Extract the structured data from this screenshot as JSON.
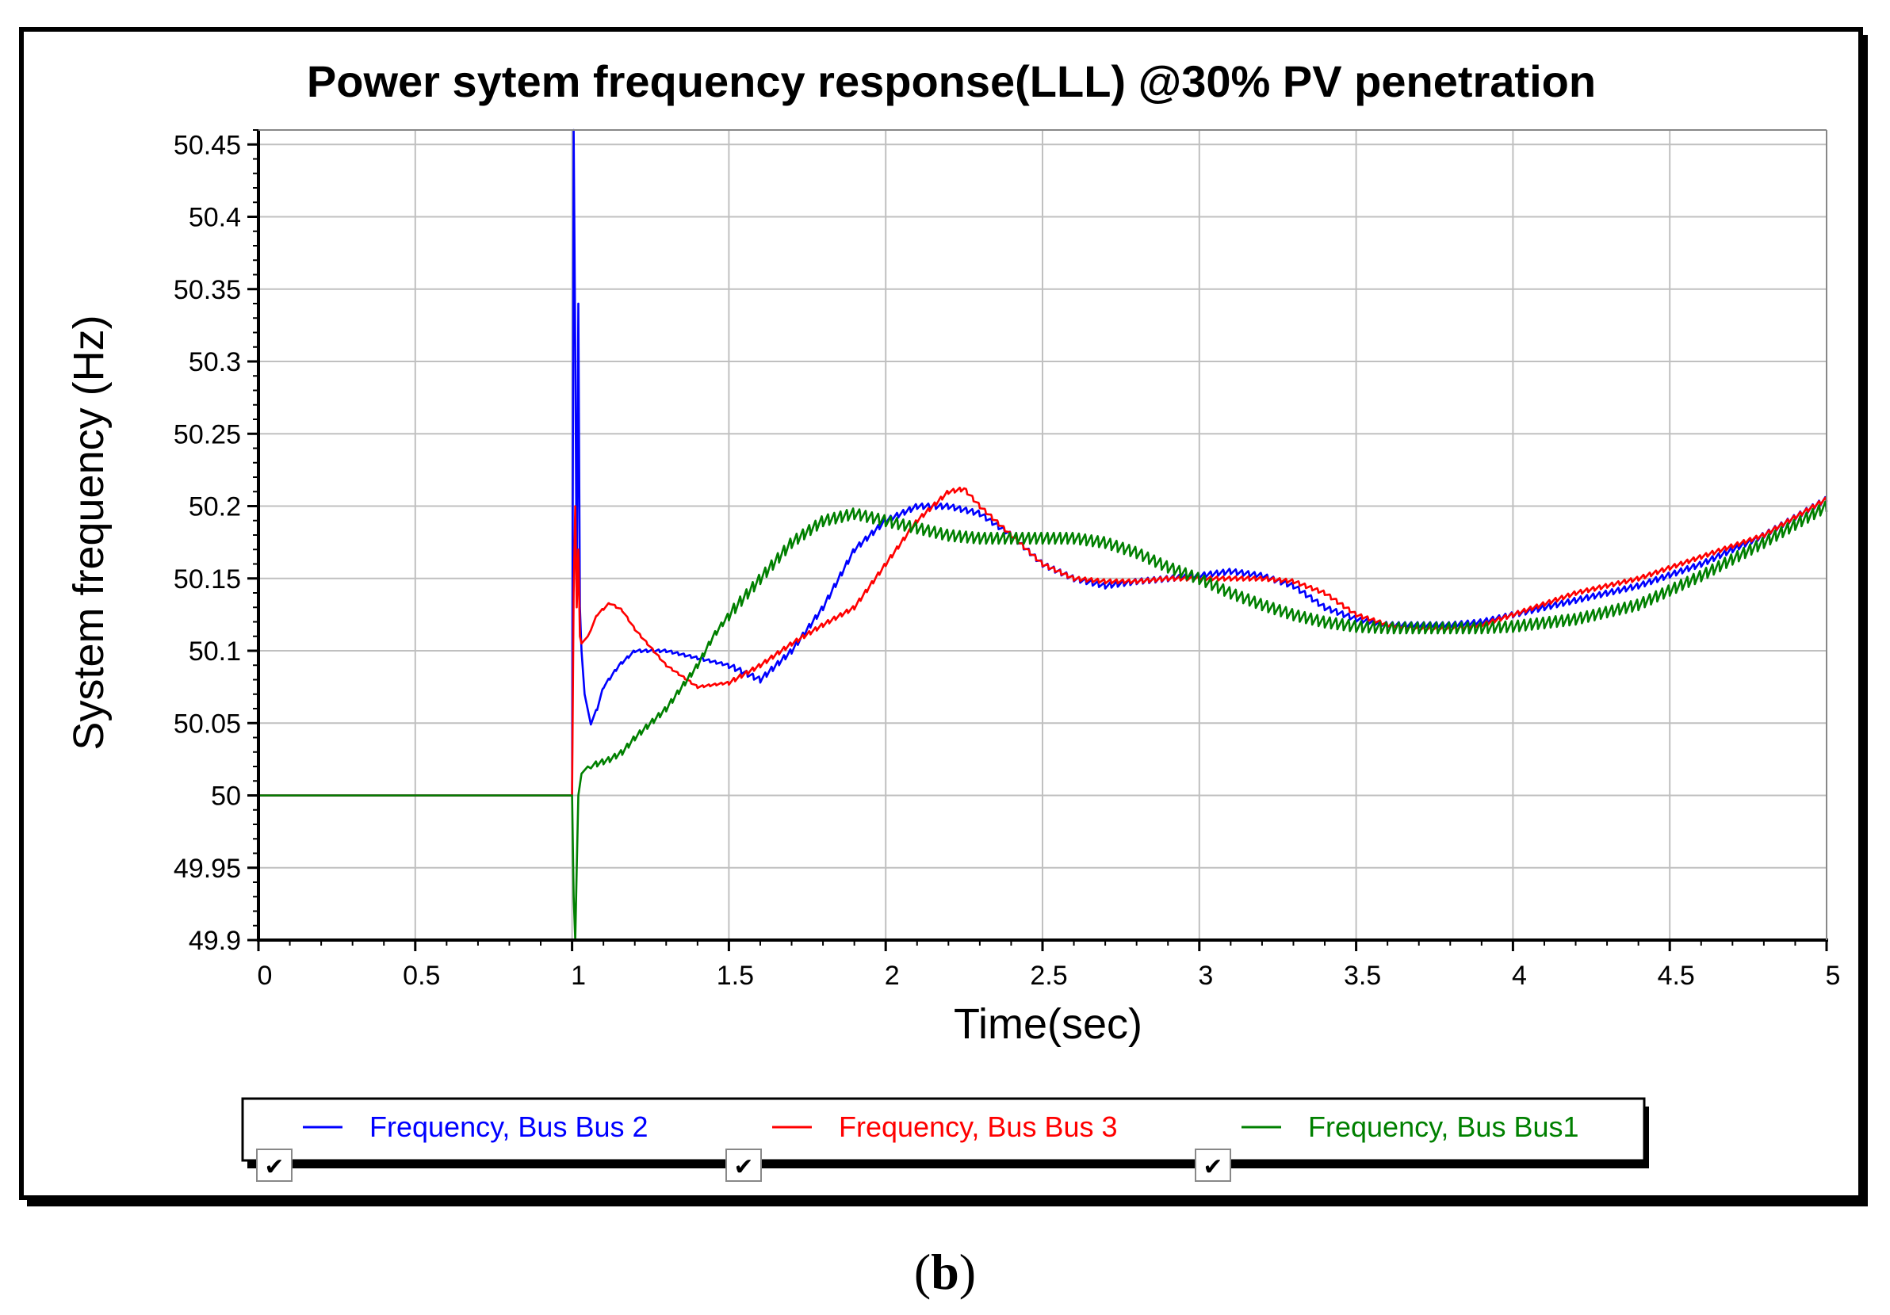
{
  "chart_data": {
    "type": "line",
    "title": "Power sytem frequency response(LLL) @30% PV penetration",
    "xlabel": "Time(sec)",
    "ylabel": "System frequency (Hz)",
    "xlim": [
      0,
      5
    ],
    "ylim": [
      49.9,
      50.46
    ],
    "x_ticks": [
      0,
      0.5,
      1,
      1.5,
      2,
      2.5,
      3,
      3.5,
      4,
      4.5,
      5
    ],
    "x_tick_labels": [
      "0",
      "0.5",
      "1",
      "1.5",
      "2",
      "2.5",
      "3",
      "3.5",
      "4",
      "4.5",
      "5"
    ],
    "y_ticks": [
      49.9,
      49.95,
      50,
      50.05,
      50.1,
      50.15,
      50.2,
      50.25,
      50.3,
      50.35,
      50.4,
      50.45
    ],
    "y_tick_labels": [
      "49.9",
      "49.95",
      "50",
      "50.05",
      "50.1",
      "50.15",
      "50.2",
      "50.25",
      "50.3",
      "50.35",
      "50.4",
      "50.45"
    ],
    "grid": true,
    "legend_position": "bottom",
    "series": [
      {
        "name": "Frequency, Bus Bus 2",
        "color": "#0000ff",
        "ripple": 0.004,
        "x": [
          0,
          1.0,
          1.005,
          1.01,
          1.015,
          1.02,
          1.025,
          1.03,
          1.04,
          1.06,
          1.08,
          1.1,
          1.15,
          1.2,
          1.3,
          1.4,
          1.5,
          1.6,
          1.7,
          1.8,
          1.9,
          2.0,
          2.1,
          2.2,
          2.3,
          2.4,
          2.5,
          2.6,
          2.7,
          2.8,
          2.9,
          3.0,
          3.1,
          3.2,
          3.3,
          3.4,
          3.5,
          3.6,
          3.7,
          3.8,
          3.9,
          4.0,
          4.2,
          4.4,
          4.6,
          4.8,
          5.0
        ],
        "y": [
          50.0,
          50.0,
          50.46,
          50.31,
          50.14,
          50.34,
          50.13,
          50.1,
          50.07,
          50.05,
          50.06,
          50.075,
          50.09,
          50.1,
          50.1,
          50.095,
          50.09,
          50.08,
          50.1,
          50.13,
          50.17,
          50.19,
          50.2,
          50.2,
          50.195,
          50.18,
          50.16,
          50.15,
          50.145,
          50.148,
          50.15,
          50.152,
          50.155,
          50.152,
          50.145,
          50.13,
          50.122,
          50.118,
          50.118,
          50.118,
          50.12,
          50.125,
          50.135,
          50.145,
          50.16,
          50.18,
          50.205
        ]
      },
      {
        "name": "Frequency, Bus Bus 3",
        "color": "#ff0000",
        "ripple": 0.003,
        "x": [
          0,
          1.0,
          1.005,
          1.01,
          1.015,
          1.02,
          1.025,
          1.03,
          1.05,
          1.08,
          1.12,
          1.16,
          1.2,
          1.3,
          1.4,
          1.5,
          1.6,
          1.7,
          1.8,
          1.9,
          2.0,
          2.1,
          2.2,
          2.25,
          2.3,
          2.4,
          2.5,
          2.6,
          2.7,
          2.8,
          2.9,
          3.0,
          3.1,
          3.2,
          3.3,
          3.4,
          3.5,
          3.6,
          3.7,
          3.8,
          3.9,
          4.0,
          4.2,
          4.4,
          4.6,
          4.8,
          5.0
        ],
        "y": [
          50.0,
          50.0,
          50.14,
          50.2,
          50.13,
          50.17,
          50.11,
          50.105,
          50.11,
          50.125,
          50.133,
          50.128,
          50.115,
          50.09,
          50.075,
          50.078,
          50.09,
          50.105,
          50.118,
          50.13,
          50.16,
          50.19,
          50.21,
          50.212,
          50.2,
          50.18,
          50.16,
          50.15,
          50.148,
          50.148,
          50.15,
          50.15,
          50.15,
          50.15,
          50.148,
          50.14,
          50.125,
          50.118,
          50.115,
          50.115,
          50.118,
          50.125,
          50.14,
          50.15,
          50.165,
          50.18,
          50.205
        ]
      },
      {
        "name": "Frequency, Bus Bus1",
        "color": "#008000",
        "ripple": 0.008,
        "x": [
          0,
          1.0,
          1.005,
          1.01,
          1.015,
          1.02,
          1.03,
          1.05,
          1.08,
          1.12,
          1.16,
          1.2,
          1.25,
          1.3,
          1.35,
          1.4,
          1.45,
          1.5,
          1.6,
          1.7,
          1.8,
          1.9,
          2.0,
          2.1,
          2.2,
          2.3,
          2.4,
          2.5,
          2.6,
          2.7,
          2.8,
          2.9,
          3.0,
          3.1,
          3.2,
          3.3,
          3.4,
          3.5,
          3.6,
          3.7,
          3.8,
          3.9,
          4.0,
          4.2,
          4.4,
          4.6,
          4.8,
          5.0
        ],
        "y": [
          50.0,
          50.0,
          49.93,
          49.9,
          49.95,
          50.0,
          50.015,
          50.02,
          50.022,
          50.025,
          50.03,
          50.04,
          50.05,
          50.06,
          50.075,
          50.09,
          50.11,
          50.125,
          50.15,
          50.175,
          50.19,
          50.195,
          50.19,
          50.185,
          50.18,
          50.178,
          50.178,
          50.178,
          50.178,
          50.175,
          50.168,
          50.158,
          50.15,
          50.14,
          50.132,
          50.125,
          50.12,
          50.117,
          50.116,
          50.116,
          50.116,
          50.116,
          50.117,
          50.122,
          50.132,
          50.152,
          50.175,
          50.2
        ]
      }
    ]
  },
  "legend": {
    "checkbox_mark": "✔"
  },
  "caption": {
    "open": "(",
    "letter": "b",
    "close": ")"
  }
}
